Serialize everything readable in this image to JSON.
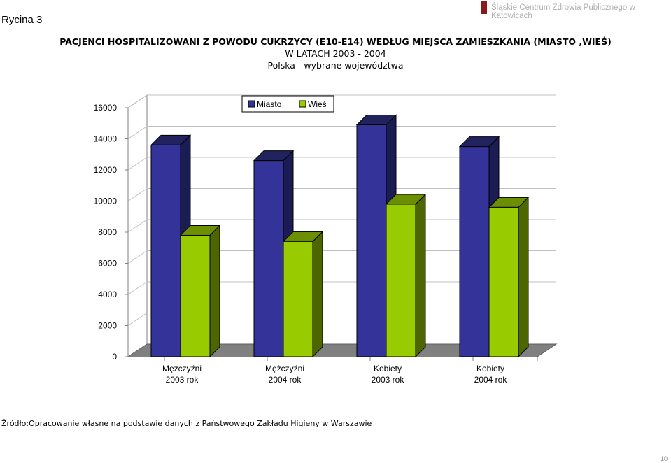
{
  "figure_label": "Rycina 3",
  "organization": "Śląskie Centrum Zdrowia Publicznego w Katowicach",
  "titles": {
    "line1": "PACJENCI HOSPITALIZOWANI Z POWODU CUKRZYCY (E10-E14) WEDŁUG MIEJSCA ZAMIESZKANIA (MIASTO ,WIEŚ)",
    "line2": "W LATACH 2003 - 2004",
    "line3": "Polska - wybrane województwa"
  },
  "source_note": "Źródło:Opracowanie własne na podstawie danych z Państwowego Zakładu Higieny w Warszawie",
  "page_number": "10",
  "colors": {
    "miasto_front": "#333399",
    "miasto_top": "#22225e",
    "miasto_side": "#1c1c55",
    "wies_front": "#99cc00",
    "wies_top": "#6b8f00",
    "wies_side": "#4d6600",
    "floor": "#808080"
  },
  "chart_data": {
    "type": "bar",
    "style": "3d-clustered",
    "categories": [
      {
        "line1": "Mężczyźni",
        "line2": "2003 rok"
      },
      {
        "line1": "Mężczyźni",
        "line2": "2004 rok"
      },
      {
        "line1": "Kobiety",
        "line2": "2003 rok"
      },
      {
        "line1": "Kobiety",
        "line2": "2004 rok"
      }
    ],
    "series": [
      {
        "name": "Miasto",
        "values": [
          13600,
          12600,
          14900,
          13500
        ]
      },
      {
        "name": "Wieś",
        "values": [
          7800,
          7400,
          9800,
          9600
        ]
      }
    ],
    "yticks": [
      "0",
      "2000",
      "4000",
      "6000",
      "8000",
      "10000",
      "12000",
      "14000",
      "16000"
    ],
    "ylim": [
      0,
      16000
    ],
    "grid": true,
    "legend_position": "top-center"
  }
}
